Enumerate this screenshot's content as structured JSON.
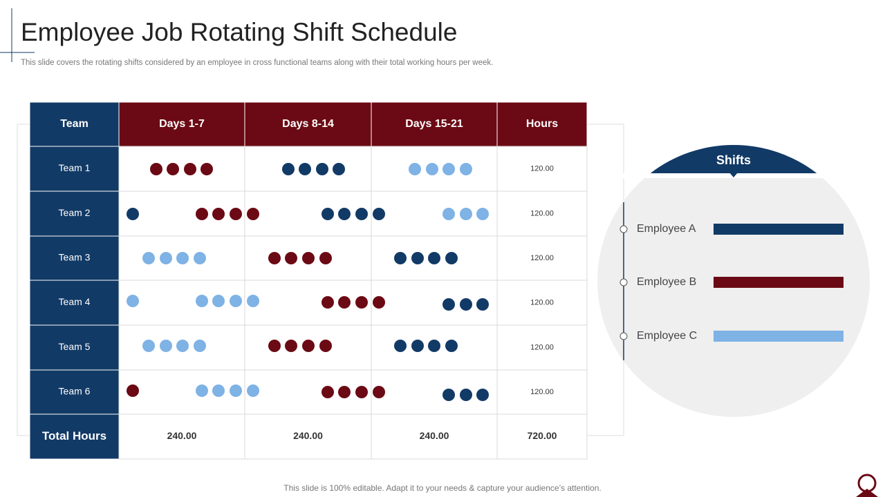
{
  "header": {
    "title": "Employee Job Rotating Shift Schedule",
    "subtitle": "This slide covers the rotating shifts considered by an employee in cross functional teams along with their total working hours per week."
  },
  "table": {
    "columns": [
      "Team",
      "Days 1-7",
      "Days 8-14",
      "Days 15-21",
      "Hours"
    ],
    "rows": [
      [
        "Team 1",
        "120.00"
      ],
      [
        "Team 2",
        "120.00"
      ],
      [
        "Team 3",
        "120.00"
      ],
      [
        "Team 4",
        "120.00"
      ],
      [
        "Team 5",
        "120.00"
      ],
      [
        "Team 6",
        "120.00"
      ]
    ],
    "total": [
      "Total Hours",
      "240.00",
      "240.00",
      "240.00",
      "720.00"
    ]
  },
  "legend": {
    "title": "Shifts",
    "items": [
      {
        "label": "Employee A",
        "color": "#123a66"
      },
      {
        "label": "Employee B",
        "color": "#6b0a14"
      },
      {
        "label": "Employee C",
        "color": "#7fb2e5"
      }
    ]
  },
  "footer": "This slide is 100% editable. Adapt it to your needs & capture your audience’s attention."
}
